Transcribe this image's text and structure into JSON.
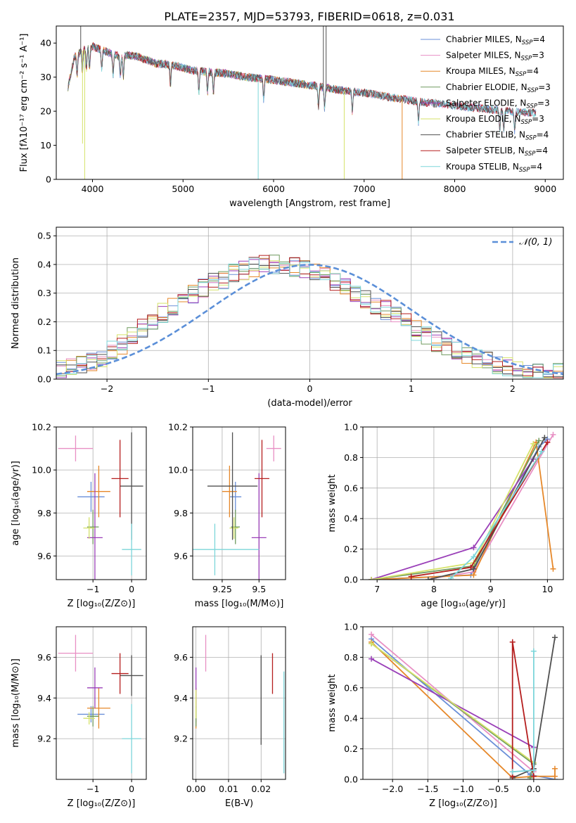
{
  "figure": {
    "title": "PLATE=2357, MJD=53793, FIBERID=0618, z=0.031"
  },
  "palette": {
    "Chabrier MILES": "#6a8fd8",
    "Salpeter MILES": "#e88fc4",
    "Kroupa MILES": "#e6882a",
    "Chabrier ELODIE": "#6f9a5e",
    "Salpeter ELODIE": "#9a3fb8",
    "Kroupa ELODIE": "#d5e26a",
    "Chabrier STELIB": "#505050",
    "Salpeter STELIB": "#b51e1e",
    "Kroupa STELIB": "#7dd6da"
  },
  "chart_data": [
    {
      "id": "spectrum",
      "type": "line",
      "title": "PLATE=2357, MJD=53793, FIBERID=0618, z=0.031",
      "xlabel": "wavelength [Angstrom, rest frame]",
      "ylabel": "Flux [fλ10⁻¹⁷ erg cm⁻² s⁻¹ A⁻¹]",
      "xlim": [
        3600,
        9200
      ],
      "ylim": [
        0,
        45
      ],
      "xticks": [
        4000,
        5000,
        6000,
        7000,
        8000,
        9000
      ],
      "yticks": [
        0,
        10,
        20,
        30,
        40
      ],
      "legend_position": "top-right",
      "legend": [
        {
          "model": "Chabrier MILES",
          "label": "Chabrier MILES, N_SSP=4"
        },
        {
          "model": "Salpeter MILES",
          "label": "Salpeter MILES, N_SSP=3"
        },
        {
          "model": "Kroupa MILES",
          "label": "Kroupa MILES, N_SSP=4"
        },
        {
          "model": "Chabrier ELODIE",
          "label": "Chabrier ELODIE, N_SSP=3"
        },
        {
          "model": "Salpeter ELODIE",
          "label": "Salpeter ELODIE, N_SSP=3"
        },
        {
          "model": "Kroupa ELODIE",
          "label": "Kroupa ELODIE, N_SSP=3"
        },
        {
          "model": "Chabrier STELIB",
          "label": "Chabrier STELIB, N_SSP=4"
        },
        {
          "model": "Salpeter STELIB",
          "label": "Salpeter STELIB, N_SSP=4"
        },
        {
          "model": "Kroupa STELIB",
          "label": "Kroupa STELIB, N_SSP=4"
        }
      ],
      "continuum": {
        "x": [
          3730,
          3800,
          3900,
          4000,
          4100,
          4200,
          4300,
          4400,
          4500,
          4700,
          4900,
          5100,
          5300,
          5500,
          5700,
          5900,
          6100,
          6300,
          6500,
          6700,
          6900,
          7100,
          7300,
          7500,
          7700,
          7900,
          8100,
          8300,
          8500,
          8700,
          8900
        ],
        "y": [
          27,
          36,
          38,
          39,
          38,
          37,
          36,
          36.5,
          36,
          34,
          33.5,
          32,
          31.5,
          31,
          30,
          29.5,
          28.8,
          28,
          27.3,
          26.3,
          25.7,
          25,
          24,
          23.2,
          22.5,
          22,
          21.3,
          20.8,
          20.3,
          19.8,
          19.5
        ]
      },
      "absorption_lines": [
        3830,
        3889,
        3933,
        3968,
        4102,
        4227,
        4308,
        4341,
        4861,
        5175,
        5270,
        5335,
        5890,
        6495,
        6563,
        6870,
        7600,
        8498,
        8542,
        8662
      ],
      "spike_features": [
        {
          "x": 3890,
          "y": 10.5,
          "model": "Kroupa ELODIE"
        },
        {
          "x": 3914,
          "y": 0,
          "model": "Kroupa ELODIE"
        },
        {
          "x": 5830,
          "y": 0,
          "model": "Kroupa STELIB"
        },
        {
          "x": 6780,
          "y": 0,
          "model": "Kroupa ELODIE"
        },
        {
          "x": 7420,
          "y": 0,
          "model": "Kroupa MILES"
        },
        {
          "x": 3870,
          "y": 45,
          "model": "Chabrier STELIB"
        },
        {
          "x": 6550,
          "y": 45,
          "model": "Chabrier STELIB"
        },
        {
          "x": 6580,
          "y": 45,
          "model": "Chabrier STELIB"
        }
      ],
      "end_x": {
        "Kroupa MILES": 7420,
        "Kroupa ELODIE": 6780,
        "Salpeter ELODIE": 6800,
        "Chabrier ELODIE": 6800,
        "Kroupa STELIB": 8900,
        "Chabrier STELIB": 8900,
        "Salpeter STELIB": 8900,
        "Chabrier MILES": 8900,
        "Salpeter MILES": 8900
      }
    },
    {
      "id": "residuals",
      "type": "line",
      "xlabel": "(data-model)/error",
      "ylabel": "Normed distribution",
      "xlim": [
        -2.5,
        2.5
      ],
      "ylim": [
        0,
        0.53
      ],
      "xticks": [
        -2,
        -1,
        0,
        1,
        2
      ],
      "yticks": [
        0.0,
        0.1,
        0.2,
        0.3,
        0.4,
        0.5
      ],
      "grid": true,
      "legend_position": "top-right",
      "reference_curve": {
        "label": "𝒩(0, 1)",
        "style": "dashed",
        "color": "#5b8fd8",
        "mean": 0,
        "sigma": 1
      },
      "bin_width": 0.1,
      "bin_centers": [
        -2.45,
        -2.35,
        -2.25,
        -2.15,
        -2.05,
        -1.95,
        -1.85,
        -1.75,
        -1.65,
        -1.55,
        -1.45,
        -1.35,
        -1.25,
        -1.15,
        -1.05,
        -0.95,
        -0.85,
        -0.75,
        -0.65,
        -0.55,
        -0.45,
        -0.35,
        -0.25,
        -0.15,
        -0.05,
        0.05,
        0.15,
        0.25,
        0.35,
        0.45,
        0.55,
        0.65,
        0.75,
        0.85,
        0.95,
        1.05,
        1.15,
        1.25,
        1.35,
        1.45,
        1.55,
        1.65,
        1.75,
        1.85,
        1.95,
        2.05,
        2.15,
        2.25,
        2.35,
        2.45
      ],
      "envelope": [
        0.03,
        0.04,
        0.05,
        0.06,
        0.07,
        0.1,
        0.12,
        0.15,
        0.18,
        0.2,
        0.23,
        0.25,
        0.27,
        0.3,
        0.32,
        0.34,
        0.35,
        0.37,
        0.38,
        0.39,
        0.4,
        0.4,
        0.4,
        0.39,
        0.38,
        0.37,
        0.36,
        0.34,
        0.32,
        0.3,
        0.28,
        0.26,
        0.24,
        0.22,
        0.2,
        0.17,
        0.15,
        0.13,
        0.11,
        0.1,
        0.08,
        0.07,
        0.06,
        0.05,
        0.04,
        0.035,
        0.03,
        0.03,
        0.025,
        0.02
      ]
    },
    {
      "id": "age-vs-Z",
      "type": "scatter",
      "xlabel": "Z [log₁₀(Z/Z⊙)]",
      "ylabel": "age  [log₁₀(age/yr)]",
      "xlim": [
        -1.95,
        0.38
      ],
      "ylim": [
        9.49,
        10.2
      ],
      "xticks": [
        -1,
        0
      ],
      "yticks": [
        9.6,
        9.8,
        10.0,
        10.2
      ],
      "grid": true,
      "points": [
        {
          "model": "Chabrier MILES",
          "x": -1.05,
          "y": 9.875,
          "xerr": 0.35,
          "yerr": 0.07
        },
        {
          "model": "Salpeter MILES",
          "x": -1.45,
          "y": 10.1,
          "xerr": 0.45,
          "yerr": 0.06
        },
        {
          "model": "Kroupa MILES",
          "x": -0.85,
          "y": 9.9,
          "xerr": 0.3,
          "yerr": 0.12
        },
        {
          "model": "Chabrier ELODIE",
          "x": -1.0,
          "y": 9.735,
          "xerr": 0.15,
          "yerr": 0.08
        },
        {
          "model": "Salpeter ELODIE",
          "x": -0.95,
          "y": 9.685,
          "xerr": 0.2,
          "yerr": 0.3
        },
        {
          "model": "Kroupa ELODIE",
          "x": -1.1,
          "y": 9.73,
          "xerr": 0.15,
          "yerr": 0.05
        },
        {
          "model": "Chabrier STELIB",
          "x": 0.0,
          "y": 9.925,
          "xerr": 0.3,
          "yerr": 0.25
        },
        {
          "model": "Salpeter STELIB",
          "x": -0.3,
          "y": 9.96,
          "xerr": 0.22,
          "yerr": 0.18
        },
        {
          "model": "Kroupa STELIB",
          "x": 0.0,
          "y": 9.63,
          "xerr": 0.25,
          "yerr": 0.12
        }
      ]
    },
    {
      "id": "age-vs-mass",
      "type": "scatter",
      "xlabel": "mass [log₁₀(M/M⊙)]",
      "xlim": [
        9.05,
        9.68
      ],
      "ylim": [
        9.49,
        10.2
      ],
      "xticks": [
        9.25,
        9.5
      ],
      "yticks": [
        9.6,
        9.8,
        10.0,
        10.2
      ],
      "grid": true,
      "points": [
        {
          "model": "Chabrier MILES",
          "x": 9.34,
          "y": 9.875,
          "xerr": 0.04,
          "yerr": 0.07
        },
        {
          "model": "Salpeter MILES",
          "x": 9.6,
          "y": 10.1,
          "xerr": 0.05,
          "yerr": 0.06
        },
        {
          "model": "Kroupa MILES",
          "x": 9.3,
          "y": 9.9,
          "xerr": 0.05,
          "yerr": 0.12
        },
        {
          "model": "Chabrier ELODIE",
          "x": 9.34,
          "y": 9.735,
          "xerr": 0.03,
          "yerr": 0.08
        },
        {
          "model": "Salpeter ELODIE",
          "x": 9.5,
          "y": 9.685,
          "xerr": 0.05,
          "yerr": 0.3
        },
        {
          "model": "Kroupa ELODIE",
          "x": 9.33,
          "y": 9.73,
          "xerr": 0.03,
          "yerr": 0.05
        },
        {
          "model": "Chabrier STELIB",
          "x": 9.32,
          "y": 9.925,
          "xerr": 0.17,
          "yerr": 0.25
        },
        {
          "model": "Salpeter STELIB",
          "x": 9.52,
          "y": 9.96,
          "xerr": 0.05,
          "yerr": 0.18
        },
        {
          "model": "Kroupa STELIB",
          "x": 9.2,
          "y": 9.63,
          "xerr": 0.3,
          "yerr": 0.12
        }
      ]
    },
    {
      "id": "weight-vs-age",
      "type": "line",
      "xlabel": "age  [log₁₀(age/yr)]",
      "ylabel": "mass weight",
      "xlim": [
        6.75,
        10.28
      ],
      "ylim": [
        0,
        1.0
      ],
      "xticks": [
        7,
        8,
        9,
        10
      ],
      "yticks": [
        0.0,
        0.2,
        0.4,
        0.6,
        0.8,
        1.0
      ],
      "grid": true,
      "series": [
        {
          "model": "Chabrier MILES",
          "x": [
            6.9,
            8.65,
            9.85,
            10.0
          ],
          "y": [
            0.0,
            0.03,
            0.87,
            0.92
          ]
        },
        {
          "model": "Salpeter MILES",
          "x": [
            8.0,
            8.7,
            10.1
          ],
          "y": [
            0.01,
            0.05,
            0.95
          ]
        },
        {
          "model": "Kroupa MILES",
          "x": [
            6.9,
            8.7,
            9.8,
            10.1
          ],
          "y": [
            0.0,
            0.03,
            0.9,
            0.07
          ]
        },
        {
          "model": "Chabrier ELODIE",
          "x": [
            6.9,
            8.7,
            9.85
          ],
          "y": [
            0.0,
            0.09,
            0.91
          ]
        },
        {
          "model": "Salpeter ELODIE",
          "x": [
            6.9,
            8.7,
            9.75
          ],
          "y": [
            0.0,
            0.21,
            0.79
          ]
        },
        {
          "model": "Kroupa ELODIE",
          "x": [
            6.9,
            8.7,
            9.75
          ],
          "y": [
            0.0,
            0.11,
            0.89
          ]
        },
        {
          "model": "Chabrier STELIB",
          "x": [
            7.9,
            8.7,
            9.95
          ],
          "y": [
            0.0,
            0.07,
            0.93
          ]
        },
        {
          "model": "Salpeter STELIB",
          "x": [
            7.6,
            8.65,
            10.0
          ],
          "y": [
            0.02,
            0.08,
            0.9
          ]
        },
        {
          "model": "Kroupa STELIB",
          "x": [
            8.3,
            8.7,
            9.9
          ],
          "y": [
            0.01,
            0.15,
            0.84
          ]
        }
      ]
    },
    {
      "id": "mass-vs-Z",
      "type": "scatter",
      "xlabel": "Z [log₁₀(Z/Z⊙)]",
      "ylabel": "mass [log₁₀(M/M⊙)]",
      "xlim": [
        -1.95,
        0.38
      ],
      "ylim": [
        9.0,
        9.75
      ],
      "xticks": [
        -1,
        0
      ],
      "yticks": [
        9.2,
        9.4,
        9.6
      ],
      "grid": true,
      "points": [
        {
          "model": "Chabrier MILES",
          "x": -1.05,
          "y": 9.32,
          "xerr": 0.35,
          "yerr": 0.04
        },
        {
          "model": "Salpeter MILES",
          "x": -1.45,
          "y": 9.62,
          "xerr": 0.45,
          "yerr": 0.09
        },
        {
          "model": "Kroupa MILES",
          "x": -0.85,
          "y": 9.35,
          "xerr": 0.3,
          "yerr": 0.1
        },
        {
          "model": "Chabrier ELODIE",
          "x": -1.0,
          "y": 9.31,
          "xerr": 0.15,
          "yerr": 0.05
        },
        {
          "model": "Salpeter ELODIE",
          "x": -0.95,
          "y": 9.45,
          "xerr": 0.2,
          "yerr": 0.1
        },
        {
          "model": "Kroupa ELODIE",
          "x": -1.1,
          "y": 9.3,
          "xerr": 0.15,
          "yerr": 0.03
        },
        {
          "model": "Chabrier STELIB",
          "x": 0.0,
          "y": 9.51,
          "xerr": 0.3,
          "yerr": 0.1
        },
        {
          "model": "Salpeter STELIB",
          "x": -0.3,
          "y": 9.52,
          "xerr": 0.22,
          "yerr": 0.1
        },
        {
          "model": "Kroupa STELIB",
          "x": 0.0,
          "y": 9.2,
          "xerr": 0.25,
          "yerr": 0.17
        }
      ]
    },
    {
      "id": "mass-vs-ebv",
      "type": "scatter",
      "xlabel": "E(B-V)",
      "xlim": [
        -0.001,
        0.0275
      ],
      "ylim": [
        9.0,
        9.75
      ],
      "xticks": [
        0.0,
        0.01,
        0.02
      ],
      "xticklabels": [
        "0.00",
        "0.01",
        "0.02"
      ],
      "yticks": [
        9.2,
        9.4,
        9.6
      ],
      "grid": true,
      "points": [
        {
          "model": "Chabrier MILES",
          "x": 0.0,
          "y": 9.32,
          "xerr": 0,
          "yerr": 0.04
        },
        {
          "model": "Salpeter MILES",
          "x": 0.003,
          "y": 9.62,
          "xerr": 0,
          "yerr": 0.09
        },
        {
          "model": "Kroupa MILES",
          "x": 0.0,
          "y": 9.35,
          "xerr": 0,
          "yerr": 0.1
        },
        {
          "model": "Chabrier ELODIE",
          "x": 0.0,
          "y": 9.31,
          "xerr": 0,
          "yerr": 0.05
        },
        {
          "model": "Salpeter ELODIE",
          "x": 0.0,
          "y": 9.45,
          "xerr": 0,
          "yerr": 0.1
        },
        {
          "model": "Kroupa ELODIE",
          "x": 0.0,
          "y": 9.37,
          "xerr": 0,
          "yerr": 0.07
        },
        {
          "model": "Chabrier STELIB",
          "x": 0.02,
          "y": 9.39,
          "xerr": 0,
          "yerr": 0.22
        },
        {
          "model": "Salpeter STELIB",
          "x": 0.0235,
          "y": 9.52,
          "xerr": 0,
          "yerr": 0.1
        },
        {
          "model": "Kroupa STELIB",
          "x": 0.027,
          "y": 9.28,
          "xerr": 0,
          "yerr": 0.25
        }
      ]
    },
    {
      "id": "weight-vs-Z",
      "type": "line",
      "xlabel": "Z [log₁₀(Z/Z⊙)]",
      "ylabel": "mass weight",
      "xlim": [
        -2.42,
        0.42
      ],
      "ylim": [
        0,
        1.0
      ],
      "xticks": [
        -2.0,
        -1.5,
        -1.0,
        -0.5,
        0.0
      ],
      "xticklabels": [
        "−2.0",
        "−1.5",
        "−1.0",
        "−0.5",
        "0.0"
      ],
      "yticks": [
        0.0,
        0.2,
        0.4,
        0.6,
        0.8,
        1.0
      ],
      "grid": true,
      "series": [
        {
          "model": "Chabrier MILES",
          "x": [
            -2.3,
            -0.05,
            0.3
          ],
          "y": [
            0.92,
            0.03,
            0.0
          ]
        },
        {
          "model": "Salpeter MILES",
          "x": [
            -2.3,
            0.0
          ],
          "y": [
            0.95,
            0.05
          ]
        },
        {
          "model": "Kroupa MILES",
          "x": [
            -2.3,
            -0.3,
            0.0,
            0.3,
            0.3
          ],
          "y": [
            0.9,
            0.01,
            0.02,
            0.02,
            0.07
          ]
        },
        {
          "model": "Chabrier ELODIE",
          "x": [
            -2.3,
            0.0,
            -0.05
          ],
          "y": [
            0.89,
            0.1,
            0.01
          ]
        },
        {
          "model": "Salpeter ELODIE",
          "x": [
            -2.3,
            0.0
          ],
          "y": [
            0.79,
            0.21
          ]
        },
        {
          "model": "Kroupa ELODIE",
          "x": [
            -2.3,
            0.0
          ],
          "y": [
            0.89,
            0.11
          ]
        },
        {
          "model": "Chabrier STELIB",
          "x": [
            -0.3,
            0.0,
            0.3
          ],
          "y": [
            0.01,
            0.07,
            0.93
          ]
        },
        {
          "model": "Salpeter STELIB",
          "x": [
            -0.3,
            -0.3,
            0.0
          ],
          "y": [
            0.02,
            0.9,
            0.02
          ]
        },
        {
          "model": "Kroupa STELIB",
          "x": [
            -0.3,
            0.0,
            0.0
          ],
          "y": [
            0.05,
            0.06,
            0.84
          ]
        }
      ]
    }
  ]
}
